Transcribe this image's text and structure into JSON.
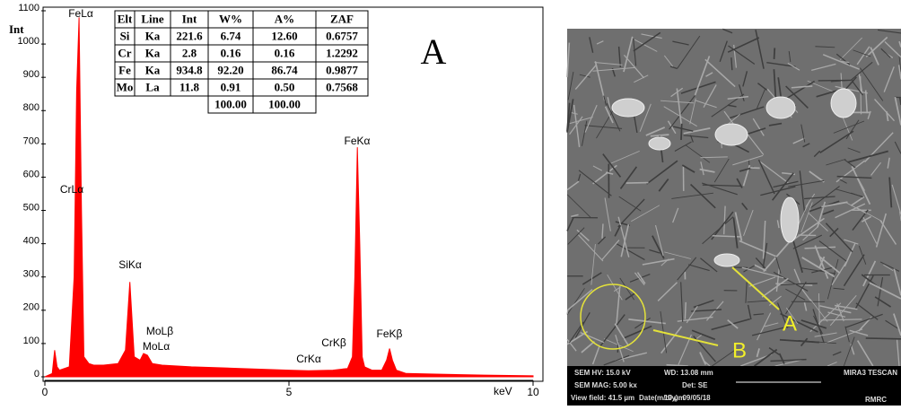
{
  "chart_data": {
    "type": "area",
    "color": "#ff0000",
    "y_label": "Int",
    "x_label": "keV",
    "x": [
      0,
      0.15,
      0.2,
      0.25,
      0.3,
      0.5,
      0.6,
      0.65,
      0.7,
      0.75,
      0.8,
      0.9,
      1.0,
      1.2,
      1.5,
      1.65,
      1.74,
      1.83,
      1.95,
      2.02,
      2.1,
      2.2,
      2.4,
      3.0,
      4.0,
      5.0,
      5.4,
      5.9,
      6.2,
      6.3,
      6.35,
      6.4,
      6.45,
      6.5,
      6.55,
      6.7,
      6.9,
      7.0,
      7.06,
      7.12,
      7.2,
      7.4,
      8.0,
      9.0,
      10.0
    ],
    "values": [
      0,
      10,
      80,
      30,
      20,
      30,
      300,
      860,
      1080,
      500,
      60,
      40,
      35,
      35,
      40,
      80,
      285,
      60,
      50,
      70,
      65,
      40,
      35,
      30,
      25,
      20,
      18,
      20,
      25,
      60,
      300,
      690,
      400,
      60,
      30,
      20,
      20,
      50,
      85,
      50,
      20,
      10,
      8,
      5,
      3
    ],
    "xlim": [
      0,
      10
    ],
    "xticks": [
      0,
      5,
      10
    ],
    "ylim": [
      0,
      1100
    ],
    "yticks": [
      0,
      100,
      200,
      300,
      400,
      500,
      600,
      700,
      800,
      900,
      1000,
      1100
    ],
    "annotations": [
      "FeLα",
      "CrLα",
      "SiKα",
      "MoLβ",
      "MoLα",
      "CrKα",
      "CrKβ",
      "FeKα",
      "FeKβ"
    ],
    "panel_label": "A"
  },
  "table": {
    "header": [
      "Elt",
      "Line",
      "Int",
      "W%",
      "A%",
      "ZAF"
    ],
    "rows": [
      [
        "Si",
        "Ka",
        "221.6",
        "6.74",
        "12.60",
        "0.6757"
      ],
      [
        "Cr",
        "Ka",
        "2.8",
        "0.16",
        "0.16",
        "1.2292"
      ],
      [
        "Fe",
        "Ka",
        "934.8",
        "92.20",
        "86.74",
        "0.9877"
      ],
      [
        "Mo",
        "La",
        "11.8",
        "0.91",
        "0.50",
        "0.7568"
      ]
    ],
    "totals": [
      "100.00",
      "100.00"
    ]
  },
  "sem_image": {
    "markers": [
      "A",
      "B"
    ],
    "info": [
      "SEM HV: 15.0 kV",
      "WD: 13.08 mm",
      "MIRA3 TESCAN",
      "SEM MAG: 5.00 kx",
      "Det: SE",
      "10 µm",
      "View field: 41.5 µm",
      "Date(m/d/y): 09/05/18",
      "RMRC"
    ]
  }
}
